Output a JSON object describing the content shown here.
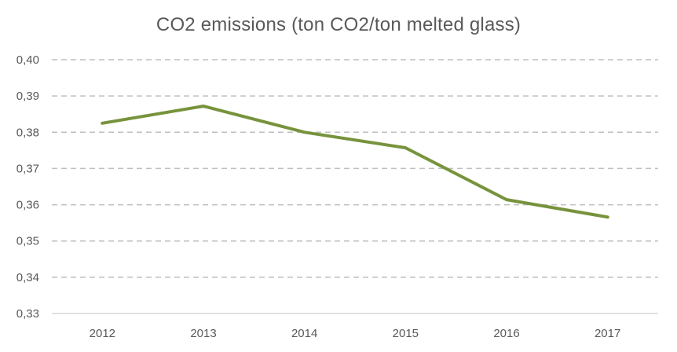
{
  "chart_data": {
    "type": "line",
    "title": "CO2 emissions (ton CO2/ton melted glass)",
    "xlabel": "",
    "ylabel": "",
    "categories": [
      "2012",
      "2013",
      "2014",
      "2015",
      "2016",
      "2017"
    ],
    "series": [
      {
        "values": [
          0.3825,
          0.3872,
          0.38,
          0.3757,
          0.3614,
          0.3566
        ],
        "color": "#77933C"
      }
    ],
    "ylim": [
      0.33,
      0.4
    ],
    "yticks": [
      0.33,
      0.34,
      0.35,
      0.36,
      0.37,
      0.38,
      0.39,
      0.4
    ],
    "ytick_labels": [
      "0,33",
      "0,34",
      "0,35",
      "0,36",
      "0,37",
      "0,38",
      "0,39",
      "0,40"
    ],
    "grid": true,
    "grid_style": "dashed",
    "legend": "none"
  }
}
